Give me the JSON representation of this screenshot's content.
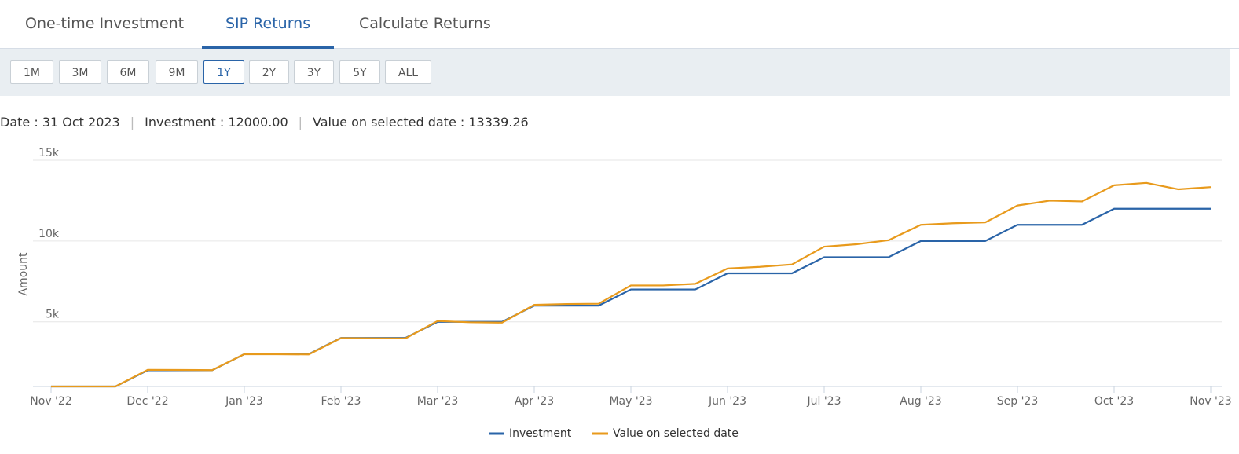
{
  "tabs": [
    "One-time Investment",
    "SIP Returns",
    "Calculate Returns"
  ],
  "active_tab": 1,
  "periods": [
    "1M",
    "3M",
    "6M",
    "9M",
    "1Y",
    "2Y",
    "3Y",
    "5Y",
    "ALL"
  ],
  "active_period": 4,
  "summary": {
    "date_label": "Date : ",
    "date": "31 Oct 2023",
    "investment_label": "Investment : ",
    "investment": "12000.00",
    "value_label": "Value on selected date : ",
    "value": "13339.26"
  },
  "chart_data": {
    "type": "line",
    "y_label": "Amount",
    "categories": [
      "Nov '22",
      null,
      null,
      "Dec '22",
      null,
      null,
      "Jan '23",
      null,
      null,
      "Feb '23",
      null,
      null,
      "Mar '23",
      null,
      null,
      "Apr '23",
      null,
      null,
      "May '23",
      null,
      null,
      "Jun '23",
      null,
      null,
      "Jul '23",
      null,
      null,
      "Aug '23",
      null,
      null,
      "Sep '23",
      null,
      null,
      "Oct '23",
      null,
      null,
      "Nov '23"
    ],
    "series": [
      {
        "name": "Investment",
        "color": "#2a64a8",
        "values": [
          1000,
          1000,
          1000,
          2000,
          2000,
          2000,
          3000,
          3000,
          3000,
          4000,
          4000,
          4000,
          5000,
          5000,
          5000,
          6000,
          6000,
          6000,
          7000,
          7000,
          7000,
          8000,
          8000,
          8000,
          9000,
          9000,
          9000,
          10000,
          10000,
          10000,
          11000,
          11000,
          11000,
          12000,
          12000,
          12000,
          12000
        ]
      },
      {
        "name": "Value on selected date",
        "color": "#e89a1c",
        "values": [
          1000,
          1000,
          1000,
          2030,
          2020,
          2010,
          3000,
          2990,
          2980,
          3990,
          3980,
          3970,
          5050,
          4970,
          4950,
          6050,
          6100,
          6120,
          7250,
          7250,
          7350,
          8300,
          8400,
          8550,
          9650,
          9800,
          10050,
          11000,
          11100,
          11150,
          12200,
          12500,
          12450,
          13450,
          13600,
          13200,
          13339.26
        ]
      }
    ],
    "ylim": [
      1000,
      15000
    ],
    "yticks": [
      {
        "value": 5000,
        "label": "5k"
      },
      {
        "value": 10000,
        "label": "10k"
      },
      {
        "value": 15000,
        "label": "15k"
      }
    ],
    "grid": true
  }
}
